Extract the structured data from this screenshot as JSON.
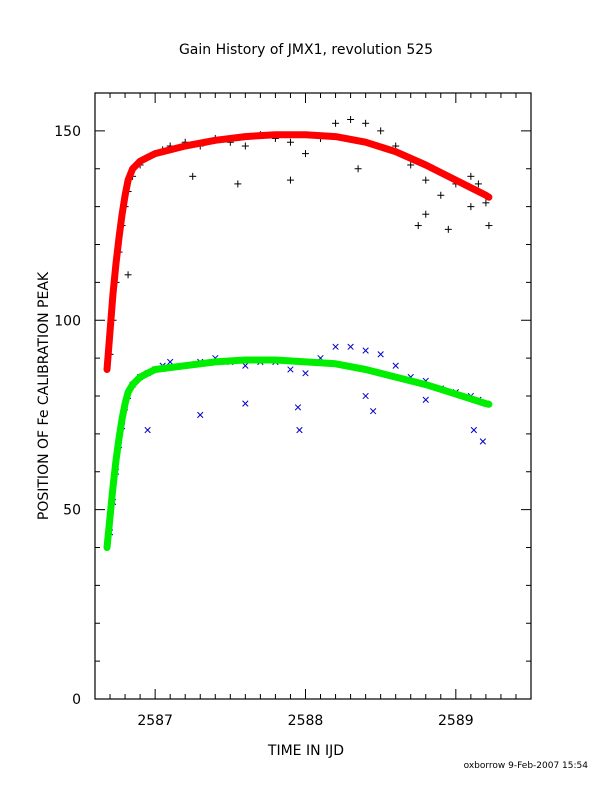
{
  "chart_data": {
    "type": "scatter",
    "title": "Gain History of JMX1, revolution 525",
    "xlabel": "TIME IN IJD",
    "ylabel": "POSITION OF Fe CALIBRATION PEAK",
    "xlim": [
      2586.6,
      2589.5
    ],
    "ylim": [
      0,
      160
    ],
    "xticks": [
      2587,
      2588,
      2589
    ],
    "yticks": [
      0,
      50,
      100,
      150
    ],
    "grid": false,
    "series": [
      {
        "marker": "plus",
        "color": "#000000",
        "x": [
          2586.7,
          2586.72,
          2586.74,
          2586.76,
          2586.78,
          2586.8,
          2586.82,
          2586.85,
          2586.9,
          2586.95,
          2587.0,
          2587.05,
          2587.1,
          2587.2,
          2587.3,
          2587.4,
          2587.5,
          2587.6,
          2587.7,
          2587.8,
          2587.9,
          2588.0,
          2588.1,
          2588.2,
          2588.3,
          2588.4,
          2588.5,
          2588.6,
          2588.7,
          2588.8,
          2588.9,
          2589.0,
          2589.1,
          2589.15,
          2589.2
        ],
        "y": [
          91,
          100,
          110,
          118,
          125,
          130,
          134,
          138,
          141,
          143,
          144,
          145,
          146,
          147,
          146,
          148,
          147,
          146,
          149,
          148,
          147,
          144,
          148,
          152,
          153,
          152,
          150,
          146,
          141,
          137,
          133,
          136,
          138,
          136,
          131
        ]
      },
      {
        "marker": "plus",
        "color": "#000000",
        "x": [
          2586.82,
          2587.25,
          2587.55,
          2587.9,
          2588.35,
          2588.75,
          2588.8,
          2588.95,
          2589.1,
          2589.22
        ],
        "y": [
          112,
          138,
          136,
          137,
          140,
          125,
          128,
          124,
          130,
          125
        ]
      },
      {
        "marker": "x",
        "color": "#0000cc",
        "x": [
          2586.7,
          2586.72,
          2586.74,
          2586.76,
          2586.78,
          2586.8,
          2586.82,
          2586.85,
          2586.9,
          2586.95,
          2587.0,
          2587.05,
          2587.1,
          2587.2,
          2587.3,
          2587.4,
          2587.5,
          2587.6,
          2587.7,
          2587.8,
          2587.9,
          2588.0,
          2588.1,
          2588.2,
          2588.3,
          2588.4,
          2588.5,
          2588.6,
          2588.7,
          2588.8,
          2588.9,
          2589.0,
          2589.1,
          2589.15,
          2589.2
        ],
        "y": [
          44,
          52,
          60,
          67,
          72,
          77,
          80,
          83,
          85,
          86,
          87,
          88,
          89,
          88,
          89,
          90,
          89,
          88,
          89,
          89,
          87,
          86,
          90,
          93,
          93,
          92,
          91,
          88,
          85,
          84,
          82,
          81,
          80,
          79,
          78
        ]
      },
      {
        "marker": "x",
        "color": "#0000cc",
        "x": [
          2586.95,
          2587.3,
          2587.6,
          2587.95,
          2587.96,
          2588.4,
          2588.45,
          2588.8,
          2589.12,
          2589.18
        ],
        "y": [
          71,
          75,
          78,
          77,
          71,
          80,
          76,
          79,
          71,
          68
        ]
      },
      {
        "type": "line",
        "color": "#ff0000",
        "x": [
          2586.68,
          2586.7,
          2586.72,
          2586.74,
          2586.76,
          2586.78,
          2586.8,
          2586.82,
          2586.85,
          2586.9,
          2586.95,
          2587.0,
          2587.2,
          2587.4,
          2587.6,
          2587.8,
          2588.0,
          2588.2,
          2588.4,
          2588.6,
          2588.8,
          2589.0,
          2589.2,
          2589.22
        ],
        "y": [
          87,
          97,
          107,
          115,
          122,
          128,
          133,
          137,
          140,
          142,
          143,
          144,
          146,
          147.5,
          148.5,
          149,
          149,
          148.5,
          147,
          144.5,
          141,
          137,
          133,
          132.5
        ]
      },
      {
        "type": "line",
        "color": "#00ee00",
        "x": [
          2586.68,
          2586.7,
          2586.72,
          2586.74,
          2586.76,
          2586.78,
          2586.8,
          2586.82,
          2586.85,
          2586.9,
          2586.95,
          2587.0,
          2587.2,
          2587.4,
          2587.6,
          2587.8,
          2588.0,
          2588.2,
          2588.4,
          2588.6,
          2588.8,
          2589.0,
          2589.2,
          2589.22
        ],
        "y": [
          40,
          48,
          56,
          63,
          69,
          74,
          78,
          81,
          83,
          85,
          86,
          87,
          88,
          89,
          89.5,
          89.5,
          89,
          88.5,
          87,
          85,
          83,
          80.5,
          78,
          77.8
        ]
      }
    ]
  },
  "footer": "oxborrow   9-Feb-2007  15:54"
}
